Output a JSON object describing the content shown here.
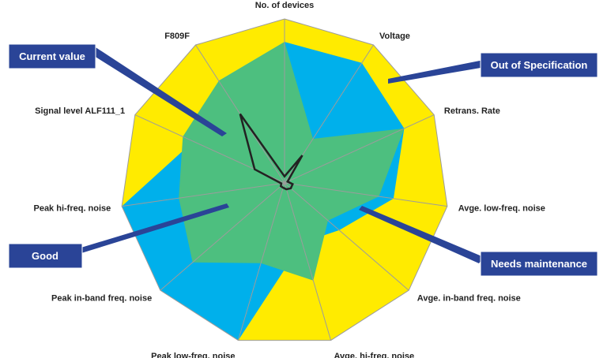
{
  "chart_data": {
    "type": "radar",
    "axes": [
      "No. of devices",
      "Voltage",
      "Retrans. Rate",
      "Avge. low-freq. noise",
      "Avge. in-band freq. noise",
      "Avge. hi-freq. noise",
      "Peak low-freq. noise",
      "Peak in-band freq. noise",
      "Peak hi-freq. noise",
      "Signal level ALF111_1",
      "F809F"
    ],
    "rmax": 1.0,
    "grid": true,
    "zones": [
      {
        "key": "out_of_spec",
        "color": "#ffeb00",
        "values": [
          1,
          1,
          1,
          1,
          1,
          1,
          1,
          1,
          1,
          1,
          1
        ]
      },
      {
        "key": "needs_maintenance",
        "color": "#00b0eb",
        "values": [
          0.86,
          0.87,
          0.8,
          0.67,
          0.44,
          0.38,
          1.0,
          1.0,
          1.0,
          0.61,
          0.74
        ]
      },
      {
        "key": "good",
        "color": "#4dbf7f",
        "values": [
          0.86,
          0.32,
          0.8,
          0.58,
          0.35,
          0.62,
          0.51,
          0.74,
          0.65,
          0.68,
          0.74
        ]
      }
    ],
    "current_value": {
      "color": "#222222",
      "values": [
        0.04,
        0.2,
        0.02,
        0.05,
        0.05,
        0.04,
        0.03,
        0.03,
        0.02,
        0.2,
        0.5
      ]
    }
  },
  "callouts": {
    "current_value": "Current value",
    "out_of_spec": "Out of Specification",
    "good": "Good",
    "needs_maintenance": "Needs maintenance"
  },
  "colors": {
    "callout_box": "#2a4497",
    "grid_line": "#9c9c9c"
  }
}
